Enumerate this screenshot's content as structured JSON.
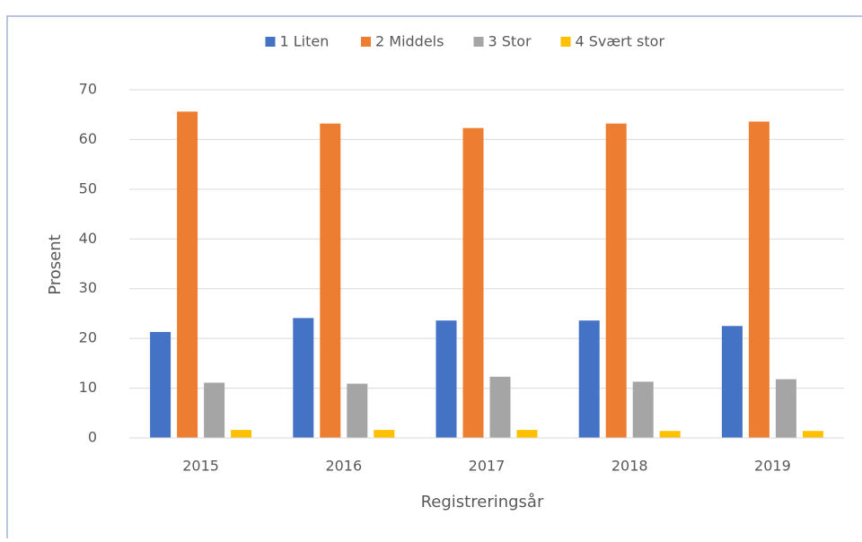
{
  "chart_data": {
    "type": "bar",
    "categories": [
      "2015",
      "2016",
      "2017",
      "2018",
      "2019"
    ],
    "series": [
      {
        "name": "1 Liten",
        "color": "#4472c4",
        "values": [
          21.3,
          24.1,
          23.6,
          23.6,
          22.5
        ]
      },
      {
        "name": "2 Middels",
        "color": "#ed7d31",
        "values": [
          65.6,
          63.2,
          62.3,
          63.2,
          63.6
        ]
      },
      {
        "name": "3 Stor",
        "color": "#a5a5a5",
        "values": [
          11.1,
          10.9,
          12.3,
          11.3,
          11.8
        ]
      },
      {
        "name": "4 Svært stor",
        "color": "#ffc000",
        "values": [
          1.6,
          1.6,
          1.6,
          1.4,
          1.4
        ]
      }
    ],
    "x_label": "Registreringsår",
    "y_label": "Prosent",
    "ylim": [
      0,
      70
    ],
    "yticks": [
      0,
      10,
      20,
      30,
      40,
      50,
      60,
      70
    ],
    "grid": true,
    "legend": "top"
  }
}
